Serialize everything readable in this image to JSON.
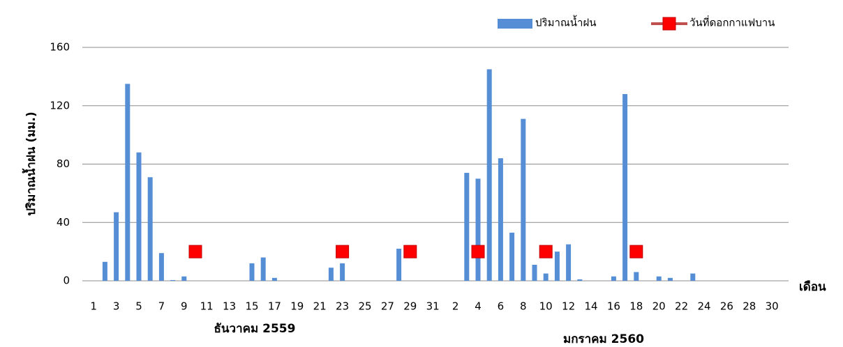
{
  "chart_data": {
    "type": "bar",
    "y_label": "ปริมาณน้ำฝน (มม.)",
    "x_label": "เดือน",
    "x_groups": [
      "ธันวาคม 2559",
      "มกราคม 2560"
    ],
    "categories": [
      "1",
      null,
      "3",
      null,
      "5",
      null,
      "7",
      null,
      "9",
      null,
      "11",
      null,
      "13",
      null,
      "15",
      null,
      "17",
      null,
      "19",
      null,
      "21",
      null,
      "23",
      null,
      "25",
      null,
      "27",
      null,
      "29",
      null,
      "31",
      null,
      "2",
      null,
      "4",
      null,
      "6",
      null,
      "8",
      null,
      "10",
      null,
      "12",
      null,
      "14",
      null,
      "16",
      null,
      "18",
      null,
      "20",
      null,
      "22",
      null,
      "24",
      null,
      "26",
      null,
      "28",
      null,
      "30",
      null
    ],
    "series": [
      {
        "name": "ปริมาณน้ำฝน",
        "color": "#558ed5",
        "values": [
          0,
          13,
          47,
          135,
          88,
          71,
          19,
          0.5,
          3,
          0,
          0,
          0,
          0,
          0,
          12,
          16,
          2,
          0,
          0,
          0,
          0,
          9,
          12,
          0,
          0,
          0,
          0,
          22,
          0,
          0,
          0,
          0,
          0,
          74,
          70,
          145,
          84,
          33,
          111,
          11,
          5,
          20,
          25,
          1,
          0,
          0,
          3,
          128,
          6,
          0,
          3,
          2,
          0,
          5,
          0,
          0,
          0,
          0,
          0,
          0,
          0,
          0
        ]
      },
      {
        "name": "วันที่ดอกกาแฟบาน",
        "color": "#ff0000",
        "values": [
          null,
          null,
          null,
          null,
          null,
          null,
          null,
          null,
          null,
          20,
          null,
          null,
          null,
          null,
          null,
          null,
          null,
          null,
          null,
          null,
          null,
          null,
          20,
          null,
          null,
          null,
          null,
          null,
          20,
          null,
          null,
          null,
          null,
          null,
          20,
          null,
          null,
          null,
          null,
          null,
          20,
          null,
          null,
          null,
          null,
          null,
          null,
          null,
          20,
          null,
          null,
          null,
          null,
          null,
          null,
          null,
          null,
          null,
          null,
          null,
          null,
          null
        ]
      }
    ],
    "ylim": [
      0,
      160
    ],
    "yticks": [
      0,
      40,
      80,
      120,
      160
    ],
    "grid": true
  }
}
